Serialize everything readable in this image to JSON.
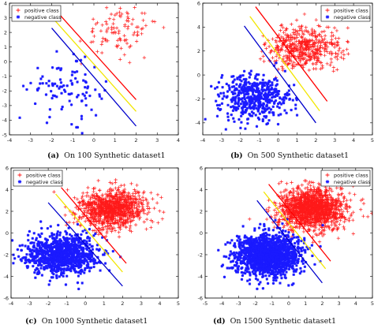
{
  "colors": {
    "positive": "#ff1a1a",
    "negative": "#1a1aff",
    "line_red": "#ff0000",
    "line_yellow": "#f2e600",
    "line_blue": "#0000cc",
    "axis": "#000000",
    "legend_bg": "#ffffff"
  },
  "legend": [
    {
      "label": "positive class",
      "marker": "plus",
      "color_key": "positive"
    },
    {
      "label": "negative class",
      "marker": "star",
      "color_key": "negative"
    }
  ],
  "chart_data": [
    {
      "type": "scatter",
      "caption": {
        "letter": "(a)",
        "text": "On 100 Synthetic dataset1"
      },
      "xlim": [
        -4,
        4
      ],
      "ylim": [
        -5,
        4
      ],
      "xticks": [
        -4,
        -3,
        -2,
        -1,
        0,
        1,
        2,
        3,
        4
      ],
      "yticks": [
        -5,
        -4,
        -3,
        -2,
        -1,
        0,
        1,
        2,
        3,
        4
      ],
      "legend_position": "top-left",
      "grid": false,
      "series": [
        {
          "name": "positive class",
          "marker": "plus",
          "center": [
            1.2,
            2.2
          ],
          "spread": [
            0.9,
            0.85
          ],
          "count": 100
        },
        {
          "name": "negative class",
          "marker": "star",
          "center": [
            -1.3,
            -1.9
          ],
          "spread": [
            0.85,
            0.95
          ],
          "count": 100
        }
      ],
      "lines": [
        {
          "color_key": "line_red",
          "from": [
            -1.8,
            3.5
          ],
          "to": [
            2.0,
            -2.6
          ]
        },
        {
          "color_key": "line_yellow",
          "from": [
            -1.9,
            2.9
          ],
          "to": [
            2.0,
            -3.4
          ]
        },
        {
          "color_key": "line_blue",
          "from": [
            -2.0,
            2.3
          ],
          "to": [
            2.0,
            -4.4
          ]
        }
      ]
    },
    {
      "type": "scatter",
      "caption": {
        "letter": "(b)",
        "text": "On 500 Synthetic dataset1"
      },
      "xlim": [
        -4,
        5
      ],
      "ylim": [
        -5,
        6
      ],
      "xticks": [
        -4,
        -3,
        -2,
        -1,
        0,
        1,
        2,
        3,
        4,
        5
      ],
      "yticks": [
        -4,
        -2,
        0,
        2,
        4,
        6
      ],
      "legend_position": "top-right",
      "grid": false,
      "series": [
        {
          "name": "positive class",
          "marker": "plus",
          "center": [
            1.4,
            2.2
          ],
          "spread": [
            0.95,
            0.9
          ],
          "count": 500
        },
        {
          "name": "negative class",
          "marker": "star",
          "center": [
            -1.3,
            -1.9
          ],
          "spread": [
            0.9,
            0.9
          ],
          "count": 500
        }
      ],
      "lines": [
        {
          "color_key": "line_red",
          "from": [
            -1.2,
            5.7
          ],
          "to": [
            2.6,
            -2.2
          ]
        },
        {
          "color_key": "line_yellow",
          "from": [
            -1.5,
            4.9
          ],
          "to": [
            2.2,
            -3.0
          ]
        },
        {
          "color_key": "line_blue",
          "from": [
            -1.8,
            4.1
          ],
          "to": [
            2.0,
            -4.0
          ]
        }
      ]
    },
    {
      "type": "scatter",
      "caption": {
        "letter": "(c)",
        "text": "On 1000 Synthetic dataset1"
      },
      "xlim": [
        -4,
        5
      ],
      "ylim": [
        -6,
        6
      ],
      "xticks": [
        -4,
        -3,
        -2,
        -1,
        0,
        1,
        2,
        3,
        4,
        5
      ],
      "yticks": [
        -6,
        -4,
        -2,
        0,
        2,
        4,
        6
      ],
      "legend_position": "top-left",
      "grid": false,
      "series": [
        {
          "name": "positive class",
          "marker": "plus",
          "center": [
            1.4,
            2.2
          ],
          "spread": [
            0.95,
            0.9
          ],
          "count": 1000
        },
        {
          "name": "negative class",
          "marker": "star",
          "center": [
            -1.3,
            -2.0
          ],
          "spread": [
            0.95,
            0.95
          ],
          "count": 1000
        }
      ],
      "lines": [
        {
          "color_key": "line_red",
          "from": [
            -1.3,
            4.2
          ],
          "to": [
            2.2,
            -2.8
          ]
        },
        {
          "color_key": "line_yellow",
          "from": [
            -1.6,
            3.6
          ],
          "to": [
            2.0,
            -3.6
          ]
        },
        {
          "color_key": "line_blue",
          "from": [
            -2.0,
            2.8
          ],
          "to": [
            2.0,
            -4.9
          ]
        }
      ]
    },
    {
      "type": "scatter",
      "caption": {
        "letter": "(d)",
        "text": "On 1500 Synthetic dataset1"
      },
      "xlim": [
        -5,
        5
      ],
      "ylim": [
        -6,
        6
      ],
      "xticks": [
        -5,
        -4,
        -3,
        -2,
        -1,
        0,
        1,
        2,
        3,
        4,
        5
      ],
      "yticks": [
        -6,
        -4,
        -2,
        0,
        2,
        4,
        6
      ],
      "legend_position": "top-right",
      "grid": false,
      "series": [
        {
          "name": "positive class",
          "marker": "plus",
          "center": [
            1.4,
            2.2
          ],
          "spread": [
            1.0,
            0.95
          ],
          "count": 1500
        },
        {
          "name": "negative class",
          "marker": "star",
          "center": [
            -1.3,
            -2.0
          ],
          "spread": [
            1.0,
            0.95
          ],
          "count": 1500
        }
      ],
      "lines": [
        {
          "color_key": "line_red",
          "from": [
            -1.2,
            4.5
          ],
          "to": [
            2.5,
            -2.6
          ]
        },
        {
          "color_key": "line_yellow",
          "from": [
            -1.5,
            3.8
          ],
          "to": [
            2.2,
            -3.3
          ]
        },
        {
          "color_key": "line_blue",
          "from": [
            -1.9,
            3.0
          ],
          "to": [
            2.0,
            -4.6
          ]
        }
      ]
    }
  ]
}
